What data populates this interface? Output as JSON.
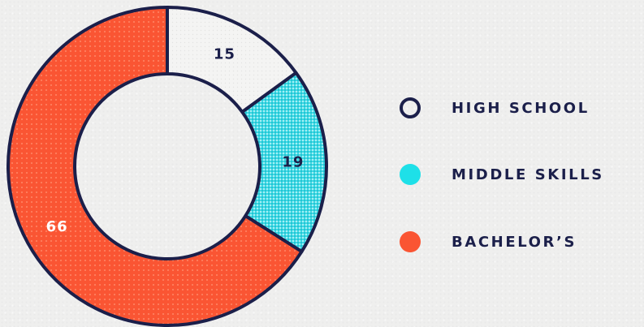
{
  "chart_data": {
    "type": "pie",
    "variant": "donut",
    "title": "",
    "categories": [
      "HIGH SCHOOL",
      "MIDDLE SKILLS",
      "BACHELOR’S"
    ],
    "values": [
      15,
      19,
      66
    ],
    "value_labels": [
      "15",
      "19",
      "66"
    ],
    "legend_position": "right",
    "colors": {
      "outline": "#1b1f4a",
      "HIGH SCHOOL": "#f3f3f2",
      "MIDDLE SKILLS": "#3ad6e3",
      "BACHELOR’S": "#fa5533"
    },
    "label_colors": [
      "#1b1f4a",
      "#1b1f4a",
      "#ffffff"
    ]
  },
  "legend": {
    "items": [
      {
        "label": "HIGH SCHOOL",
        "marker": "outline-circle",
        "color": "#1b1f4a"
      },
      {
        "label": "MIDDLE SKILLS",
        "marker": "filled-circle",
        "color": "#1ee0e8"
      },
      {
        "label": "BACHELOR’S",
        "marker": "filled-circle",
        "color": "#fa5533"
      }
    ]
  }
}
